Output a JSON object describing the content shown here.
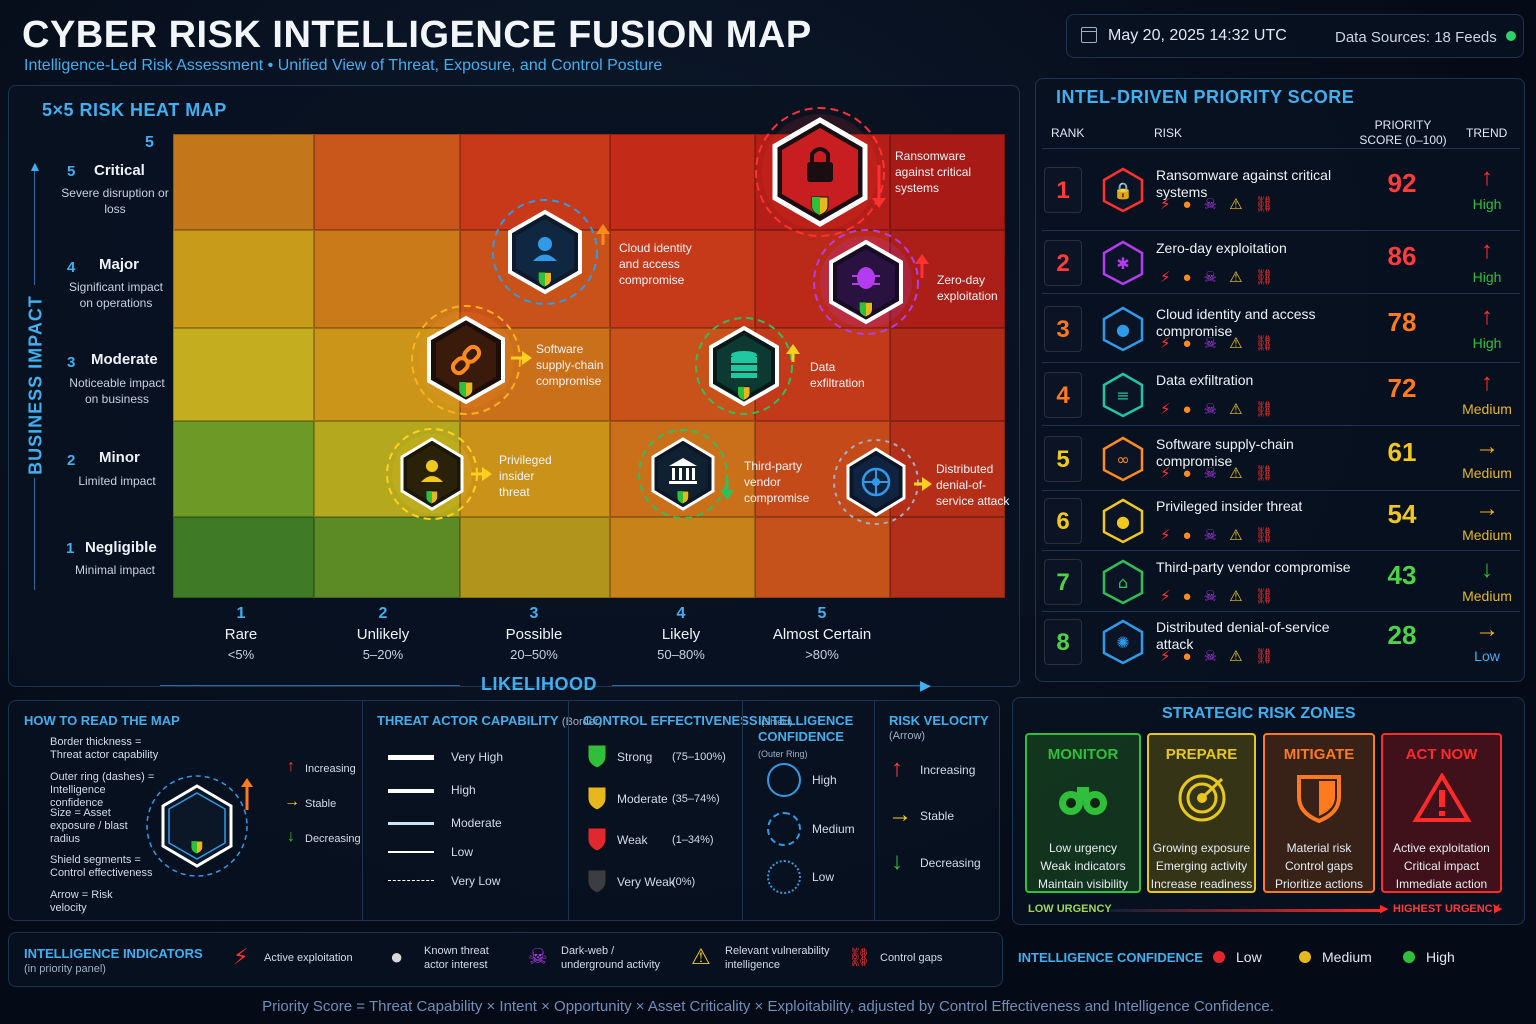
{
  "header": {
    "title": "CYBER RISK INTELLIGENCE FUSION MAP",
    "subtitle": "Intelligence-Led Risk Assessment  •  Unified View of Threat, Exposure, and Control Posture",
    "datetime": "May 20, 2025 14:32 UTC",
    "data_sources": "Data Sources: 18 Feeds"
  },
  "heatmap": {
    "title": "5×5 RISK HEAT MAP",
    "y_axis_label": "BUSINESS IMPACT",
    "x_axis_label": "LIKELIHOOD",
    "y_top_number": "5",
    "impact_levels": [
      {
        "num": "5",
        "name": "Critical",
        "desc": "Severe disruption or loss"
      },
      {
        "num": "4",
        "name": "Major",
        "desc": "Significant impact on operations"
      },
      {
        "num": "3",
        "name": "Moderate",
        "desc": "Noticeable impact on business"
      },
      {
        "num": "2",
        "name": "Minor",
        "desc": "Limited impact"
      },
      {
        "num": "1",
        "name": "Negligible",
        "desc": "Minimal impact"
      }
    ],
    "likelihood_levels": [
      {
        "num": "1",
        "name": "Rare",
        "pct": "<5%"
      },
      {
        "num": "2",
        "name": "Unlikely",
        "pct": "5–20%"
      },
      {
        "num": "3",
        "name": "Possible",
        "pct": "20–50%"
      },
      {
        "num": "4",
        "name": "Likely",
        "pct": "50–80%"
      },
      {
        "num": "5",
        "name": "Almost Certain",
        "pct": ">80%"
      }
    ],
    "markers": [
      {
        "label": "Ransomware against critical systems",
        "icon": "lock-icon",
        "color": "#ff3030",
        "trend": "increasing"
      },
      {
        "label": "Cloud identity and access compromise",
        "icon": "user-icon",
        "color": "#2f9be8",
        "trend": "increasing"
      },
      {
        "label": "Zero-day exploitation",
        "icon": "bug-icon",
        "color": "#b43cf0",
        "trend": "increasing"
      },
      {
        "label": "Software supply-chain compromise",
        "icon": "link-icon",
        "color": "#ff8a1e",
        "trend": "stable"
      },
      {
        "label": "Data exfiltration",
        "icon": "database-icon",
        "color": "#1ec8a0",
        "trend": "increasing"
      },
      {
        "label": "Privileged insider threat",
        "icon": "user-icon",
        "color": "#f0c81e",
        "trend": "stable"
      },
      {
        "label": "Third-party vendor compromise",
        "icon": "bank-icon",
        "color": "#2fbf5a",
        "trend": "decreasing"
      },
      {
        "label": "Distributed denial-of-service attack",
        "icon": "network-icon",
        "color": "#2f9be8",
        "trend": "stable"
      }
    ]
  },
  "priority": {
    "title": "INTEL-DRIVEN PRIORITY SCORE",
    "col_rank": "RANK",
    "col_risk": "RISK",
    "col_score": "PRIORITY SCORE (0–100)",
    "col_trend": "TREND",
    "rows": [
      {
        "rank": "1",
        "name": "Ransomware against critical systems",
        "score": "92",
        "trend_label": "High",
        "trend": "increasing",
        "icon": "lock-icon",
        "color": "#ff3030"
      },
      {
        "rank": "2",
        "name": "Zero-day exploitation",
        "score": "86",
        "trend_label": "High",
        "trend": "increasing",
        "icon": "bug-icon",
        "color": "#b43cf0"
      },
      {
        "rank": "3",
        "name": "Cloud identity and access compromise",
        "score": "78",
        "trend_label": "High",
        "trend": "increasing",
        "icon": "user-icon",
        "color": "#2f9be8"
      },
      {
        "rank": "4",
        "name": "Data exfiltration",
        "score": "72",
        "trend_label": "Medium",
        "trend": "increasing",
        "icon": "database-icon",
        "color": "#1ec8a0"
      },
      {
        "rank": "5",
        "name": "Software supply-chain compromise",
        "score": "61",
        "trend_label": "Medium",
        "trend": "stable",
        "icon": "link-icon",
        "color": "#ff8a1e"
      },
      {
        "rank": "6",
        "name": "Privileged insider threat",
        "score": "54",
        "trend_label": "Medium",
        "trend": "stable",
        "icon": "user-icon",
        "color": "#f0c81e"
      },
      {
        "rank": "7",
        "name": "Third-party vendor compromise",
        "score": "43",
        "trend_label": "Medium",
        "trend": "decreasing",
        "icon": "bank-icon",
        "color": "#2fbf5a"
      },
      {
        "rank": "8",
        "name": "Distributed denial-of-service attack",
        "score": "28",
        "trend_label": "Low",
        "trend": "stable",
        "icon": "network-icon",
        "color": "#2f9be8"
      }
    ]
  },
  "how_to_read": {
    "title": "HOW TO READ THE MAP",
    "items": [
      "Border thickness = Threat actor capability",
      "Outer ring (dashes) = Intelligence confidence",
      "Size = Asset exposure / blast radius",
      "Shield segments = Control effectiveness",
      "Arrow = Risk velocity"
    ],
    "arrows": [
      "Increasing",
      "Stable",
      "Decreasing"
    ]
  },
  "legend": {
    "capability_title": "THREAT ACTOR CAPABILITY",
    "capability_sub": "(Border)",
    "capability": [
      "Very High",
      "High",
      "Moderate",
      "Low",
      "Very Low"
    ],
    "control_title": "CONTROL EFFECTIVENESS",
    "control_sub": "(Shield)",
    "control": [
      {
        "name": "Strong",
        "range": "(75–100%)",
        "color": "#2fbf3a"
      },
      {
        "name": "Moderate",
        "range": "(35–74%)",
        "color": "#e6b81e"
      },
      {
        "name": "Weak",
        "range": "(1–34%)",
        "color": "#e0282e"
      },
      {
        "name": "Very Weak",
        "range": "(0%)",
        "color": "#3a3e44"
      }
    ],
    "confidence_title": "INTELLIGENCE CONFIDENCE",
    "confidence_sub": "(Outer Ring)",
    "confidence": [
      "High",
      "Medium",
      "Low"
    ],
    "velocity_title": "RISK VELOCITY",
    "velocity_sub": "(Arrow)",
    "velocity": [
      "Increasing",
      "Stable",
      "Decreasing"
    ]
  },
  "zones": {
    "title": "STRATEGIC RISK ZONES",
    "items": [
      {
        "name": "MONITOR",
        "lines": [
          "Low urgency",
          "Weak indicators",
          "Maintain visibility"
        ],
        "color": "#2fbf3a",
        "icon": "binoculars-icon"
      },
      {
        "name": "PREPARE",
        "lines": [
          "Growing exposure",
          "Emerging activity",
          "Increase readiness"
        ],
        "color": "#e6c81e",
        "icon": "target-icon"
      },
      {
        "name": "MITIGATE",
        "lines": [
          "Material risk",
          "Control gaps",
          "Prioritize actions"
        ],
        "color": "#ff7a1e",
        "icon": "shield-icon"
      },
      {
        "name": "ACT NOW",
        "lines": [
          "Active exploitation",
          "Critical impact",
          "Immediate action"
        ],
        "color": "#ff2a2a",
        "icon": "warning-icon"
      }
    ],
    "low": "LOW URGENCY",
    "high": "HIGHEST URGENCY"
  },
  "indicators": {
    "title": "INTELLIGENCE INDICATORS",
    "sub": "(in priority panel)",
    "items": [
      {
        "text": "Active exploitation",
        "icon": "lightning-icon"
      },
      {
        "text": "Known threat actor interest",
        "icon": "hacker-icon"
      },
      {
        "text": "Dark-web / underground activity",
        "icon": "skull-icon"
      },
      {
        "text": "Relevant vulnerability intelligence",
        "icon": "warning-icon"
      },
      {
        "text": "Control gaps",
        "icon": "broken-link-icon"
      }
    ]
  },
  "confidence_legend": {
    "title": "INTELLIGENCE CONFIDENCE",
    "items": [
      {
        "label": "Low",
        "color": "#e0282e"
      },
      {
        "label": "Medium",
        "color": "#e6b81e"
      },
      {
        "label": "High",
        "color": "#2fbf3a"
      }
    ]
  },
  "footer": "Priority Score =  Threat Capability × Intent × Opportunity × Asset Criticality × Exploitability, adjusted by Control Effectiveness and Intelligence Confidence."
}
